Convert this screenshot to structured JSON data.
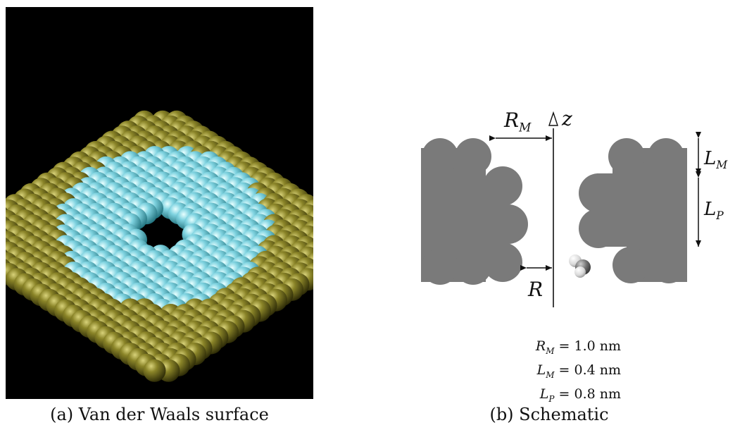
{
  "captions": {
    "a": "(a) Van der Waals surface",
    "b": "(b) Schematic"
  },
  "labels": {
    "rm_main": "R",
    "rm_sub": "M",
    "z": "z",
    "lm_main": "L",
    "lm_sub": "M",
    "lp_main": "L",
    "lp_sub": "P",
    "r": "R"
  },
  "parameters": [
    {
      "sym": "R",
      "sub": "M",
      "value": "= 1.0 nm"
    },
    {
      "sym": "L",
      "sub": "M",
      "value": "= 0.4 nm"
    },
    {
      "sym": "L",
      "sub": "P",
      "value": "= 0.8 nm"
    }
  ],
  "colors": {
    "membrane_atom": "#6e6b1e",
    "pore_atom": "#7fd3e0",
    "schematic_gray": "#7a7a7a",
    "background_a": "#000000"
  }
}
